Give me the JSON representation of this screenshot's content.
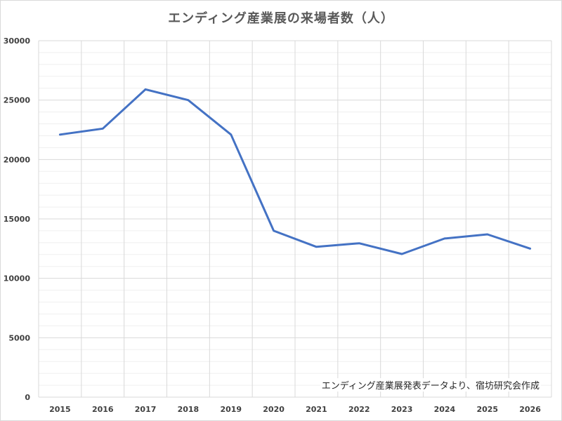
{
  "chart_data": {
    "type": "line",
    "title": "エンディング産業展の来場者数（人）",
    "source_note": "エンディング産業展発表データより、宿坊研究会作成",
    "xlabel": "",
    "ylabel": "",
    "categories": [
      "2015",
      "2016",
      "2017",
      "2018",
      "2019",
      "2020",
      "2021",
      "2022",
      "2023",
      "2024",
      "2025",
      "2026"
    ],
    "series": [
      {
        "values": [
          22100,
          22600,
          25900,
          25000,
          22100,
          14000,
          12650,
          12950,
          12050,
          13350,
          13700,
          12500
        ],
        "color": "#4472c4"
      }
    ],
    "ylim": [
      0,
      30000
    ],
    "yticks": [
      "0",
      "5000",
      "10000",
      "15000",
      "20000",
      "25000",
      "30000"
    ],
    "grid": true,
    "legend": "none"
  }
}
